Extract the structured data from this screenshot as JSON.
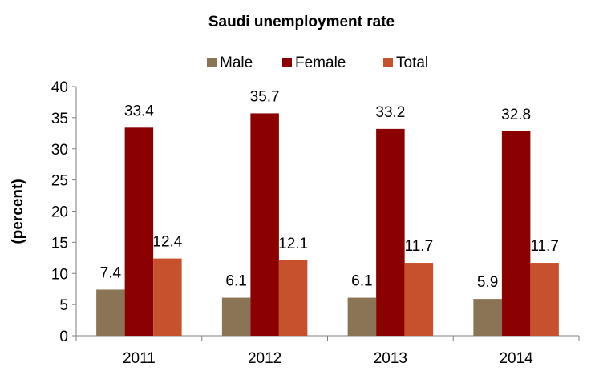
{
  "chart_data": {
    "type": "bar",
    "title": "Saudi unemployment rate",
    "xlabel": "",
    "ylabel": "(percent)",
    "categories": [
      "2011",
      "2012",
      "2013",
      "2014"
    ],
    "series": [
      {
        "name": "Male",
        "color": "#8B7355",
        "values": [
          7.4,
          6.1,
          6.1,
          5.9
        ]
      },
      {
        "name": "Female",
        "color": "#8B0000",
        "values": [
          33.4,
          35.7,
          33.2,
          32.8
        ]
      },
      {
        "name": "Total",
        "color": "#C8512D",
        "values": [
          12.4,
          12.1,
          11.7,
          11.7
        ]
      }
    ],
    "ylim": [
      0,
      40
    ],
    "yticks": [
      "0",
      "5",
      "10",
      "15",
      "20",
      "25",
      "30",
      "35",
      "40"
    ],
    "grid": false,
    "legend_position": "top"
  }
}
